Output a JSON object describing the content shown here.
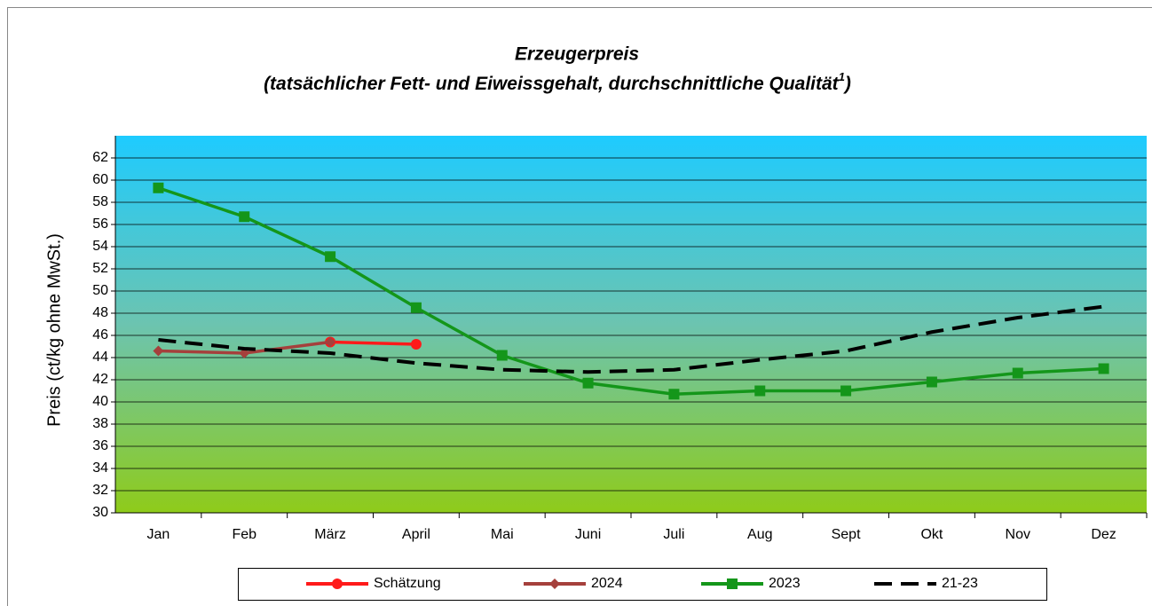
{
  "chart_data": {
    "type": "line",
    "title": "Erzeugerpreis",
    "subtitle": "(tatsächlicher Fett- und Eiweissgehalt, durchschnittliche Qualität",
    "subtitle_footnote": "1",
    "subtitle_end": ")",
    "y_label": "Preis (ct/kg ohne MwSt.)",
    "categories": [
      "Jan",
      "Feb",
      "März",
      "April",
      "Mai",
      "Juni",
      "Juli",
      "Aug",
      "Sept",
      "Okt",
      "Nov",
      "Dez"
    ],
    "ylim": [
      30,
      64
    ],
    "yticks": [
      30,
      32,
      34,
      36,
      38,
      40,
      42,
      44,
      46,
      48,
      50,
      52,
      54,
      56,
      58,
      60,
      62
    ],
    "grid": true,
    "legend": "bottom",
    "series": [
      {
        "name": "Schätzung",
        "color": "#ff1a1a",
        "marker": "circle",
        "dashed": false,
        "values": [
          null,
          null,
          45.4,
          45.2,
          null,
          null,
          null,
          null,
          null,
          null,
          null,
          null
        ]
      },
      {
        "name": "2024",
        "color": "#a5403c",
        "marker": "diamond",
        "dashed": false,
        "values": [
          44.6,
          44.4,
          45.4,
          null,
          null,
          null,
          null,
          null,
          null,
          null,
          null,
          null
        ]
      },
      {
        "name": "2023",
        "color": "#14961a",
        "marker": "square",
        "dashed": false,
        "values": [
          59.3,
          56.7,
          53.1,
          48.5,
          44.2,
          41.7,
          40.7,
          41.0,
          41.0,
          41.8,
          42.6,
          43.0
        ]
      },
      {
        "name": "21-23",
        "color": "#000000",
        "marker": null,
        "dashed": true,
        "values": [
          45.6,
          44.8,
          44.4,
          43.5,
          42.9,
          42.7,
          42.9,
          43.8,
          44.6,
          46.3,
          47.6,
          48.6
        ]
      }
    ]
  }
}
